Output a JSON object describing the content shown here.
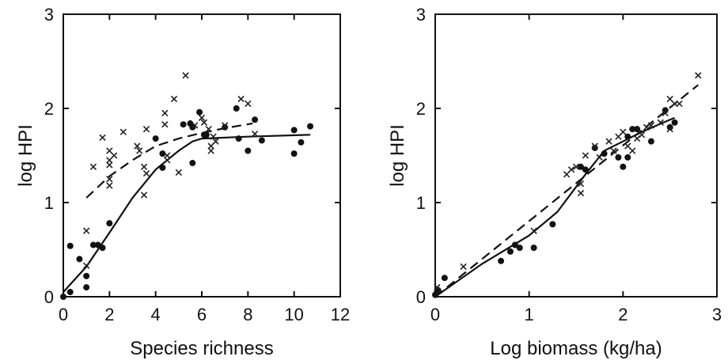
{
  "chart_data": [
    {
      "type": "scatter",
      "xlabel": "Species richness",
      "ylabel": "log HPI",
      "xlim": [
        0,
        12
      ],
      "ylim": [
        0,
        3
      ],
      "xticks": [
        0,
        2,
        4,
        6,
        8,
        10,
        12
      ],
      "yticks": [
        0,
        1,
        2,
        3
      ],
      "series": [
        {
          "marker": "dot",
          "points": [
            [
              0.0,
              0.0
            ],
            [
              0.3,
              0.54
            ],
            [
              0.3,
              0.05
            ],
            [
              0.7,
              0.4
            ],
            [
              1.0,
              0.22
            ],
            [
              1.0,
              0.1
            ],
            [
              1.3,
              0.55
            ],
            [
              1.5,
              0.55
            ],
            [
              1.7,
              0.52
            ],
            [
              2.0,
              0.78
            ],
            [
              4.0,
              1.68
            ],
            [
              4.3,
              1.37
            ],
            [
              4.3,
              1.52
            ],
            [
              5.2,
              1.83
            ],
            [
              5.5,
              1.84
            ],
            [
              5.6,
              1.42
            ],
            [
              5.6,
              1.8
            ],
            [
              5.9,
              1.96
            ],
            [
              6.1,
              1.72
            ],
            [
              6.2,
              1.72
            ],
            [
              7.0,
              1.8
            ],
            [
              7.5,
              2.0
            ],
            [
              7.6,
              1.68
            ],
            [
              8.0,
              1.55
            ],
            [
              8.3,
              1.88
            ],
            [
              8.6,
              1.66
            ],
            [
              10.0,
              1.52
            ],
            [
              10.0,
              1.77
            ],
            [
              10.3,
              1.64
            ],
            [
              10.7,
              1.81
            ]
          ]
        },
        {
          "marker": "cross",
          "points": [
            [
              1.0,
              0.7
            ],
            [
              1.0,
              0.33
            ],
            [
              1.3,
              1.38
            ],
            [
              1.7,
              1.69
            ],
            [
              2.0,
              1.55
            ],
            [
              2.0,
              1.45
            ],
            [
              2.0,
              1.4
            ],
            [
              2.0,
              1.25
            ],
            [
              2.0,
              1.18
            ],
            [
              2.2,
              1.5
            ],
            [
              2.6,
              1.75
            ],
            [
              3.2,
              1.6
            ],
            [
              3.3,
              1.55
            ],
            [
              3.5,
              1.38
            ],
            [
              3.5,
              1.08
            ],
            [
              3.6,
              1.78
            ],
            [
              3.6,
              1.31
            ],
            [
              4.4,
              1.95
            ],
            [
              4.4,
              1.83
            ],
            [
              4.5,
              1.5
            ],
            [
              4.5,
              1.45
            ],
            [
              4.8,
              2.1
            ],
            [
              5.0,
              1.32
            ],
            [
              5.3,
              2.35
            ],
            [
              5.7,
              1.82
            ],
            [
              6.0,
              1.9
            ],
            [
              6.1,
              1.85
            ],
            [
              6.3,
              1.78
            ],
            [
              6.4,
              1.6
            ],
            [
              6.4,
              1.55
            ],
            [
              6.5,
              1.7
            ],
            [
              6.6,
              1.65
            ],
            [
              7.0,
              1.82
            ],
            [
              7.7,
              2.1
            ],
            [
              8.0,
              2.05
            ],
            [
              8.3,
              1.73
            ]
          ]
        }
      ],
      "fits": [
        {
          "style": "solid",
          "points": [
            [
              0,
              0.05
            ],
            [
              1,
              0.32
            ],
            [
              2,
              0.68
            ],
            [
              3,
              1.05
            ],
            [
              4,
              1.35
            ],
            [
              5,
              1.55
            ],
            [
              5.6,
              1.65
            ],
            [
              6,
              1.68
            ],
            [
              8,
              1.7
            ],
            [
              10.7,
              1.72
            ]
          ]
        },
        {
          "style": "dashed",
          "points": [
            [
              1,
              1.05
            ],
            [
              2,
              1.28
            ],
            [
              3,
              1.45
            ],
            [
              4,
              1.6
            ],
            [
              5,
              1.68
            ],
            [
              6,
              1.74
            ],
            [
              7,
              1.79
            ],
            [
              8.2,
              1.84
            ]
          ]
        }
      ]
    },
    {
      "type": "scatter",
      "xlabel": "Log biomass (kg/ha)",
      "ylabel": "log HPI",
      "xlim": [
        0,
        3
      ],
      "ylim": [
        0,
        3
      ],
      "xticks": [
        0,
        1,
        2,
        3
      ],
      "yticks": [
        0,
        1,
        2,
        3
      ],
      "series": [
        {
          "marker": "dot",
          "points": [
            [
              0.0,
              0.02
            ],
            [
              0.02,
              0.05
            ],
            [
              0.03,
              0.07
            ],
            [
              0.1,
              0.2
            ],
            [
              0.7,
              0.38
            ],
            [
              0.8,
              0.48
            ],
            [
              0.85,
              0.55
            ],
            [
              0.9,
              0.52
            ],
            [
              1.05,
              0.52
            ],
            [
              1.25,
              0.77
            ],
            [
              1.55,
              1.38
            ],
            [
              1.6,
              1.35
            ],
            [
              1.7,
              1.58
            ],
            [
              1.8,
              1.52
            ],
            [
              1.95,
              1.48
            ],
            [
              2.0,
              1.38
            ],
            [
              2.05,
              1.7
            ],
            [
              2.05,
              1.48
            ],
            [
              2.1,
              1.78
            ],
            [
              2.15,
              1.78
            ],
            [
              2.3,
              1.65
            ],
            [
              2.45,
              1.98
            ],
            [
              2.5,
              1.8
            ],
            [
              2.55,
              1.85
            ]
          ]
        },
        {
          "marker": "cross",
          "points": [
            [
              0.02,
              0.1
            ],
            [
              0.3,
              0.32
            ],
            [
              1.05,
              0.7
            ],
            [
              1.4,
              1.3
            ],
            [
              1.45,
              1.35
            ],
            [
              1.5,
              1.38
            ],
            [
              1.55,
              1.2
            ],
            [
              1.55,
              1.1
            ],
            [
              1.6,
              1.5
            ],
            [
              1.7,
              1.6
            ],
            [
              1.75,
              1.48
            ],
            [
              1.85,
              1.65
            ],
            [
              1.9,
              1.55
            ],
            [
              1.95,
              1.7
            ],
            [
              2.0,
              1.75
            ],
            [
              2.05,
              1.6
            ],
            [
              2.1,
              1.55
            ],
            [
              2.15,
              1.68
            ],
            [
              2.2,
              1.72
            ],
            [
              2.25,
              1.8
            ],
            [
              2.3,
              1.82
            ],
            [
              2.4,
              1.85
            ],
            [
              2.45,
              1.95
            ],
            [
              2.5,
              2.1
            ],
            [
              2.5,
              1.78
            ],
            [
              2.55,
              2.05
            ],
            [
              2.6,
              2.05
            ],
            [
              2.8,
              2.35
            ]
          ]
        }
      ],
      "fits": [
        {
          "style": "solid",
          "points": [
            [
              0,
              0
            ],
            [
              0.5,
              0.35
            ],
            [
              1.0,
              0.65
            ],
            [
              1.3,
              0.9
            ],
            [
              1.6,
              1.3
            ],
            [
              1.8,
              1.55
            ],
            [
              2.0,
              1.65
            ],
            [
              2.2,
              1.75
            ],
            [
              2.5,
              1.88
            ],
            [
              2.55,
              1.9
            ]
          ]
        },
        {
          "style": "dashed",
          "points": [
            [
              0,
              0
            ],
            [
              2.8,
              2.25
            ]
          ]
        }
      ]
    }
  ]
}
